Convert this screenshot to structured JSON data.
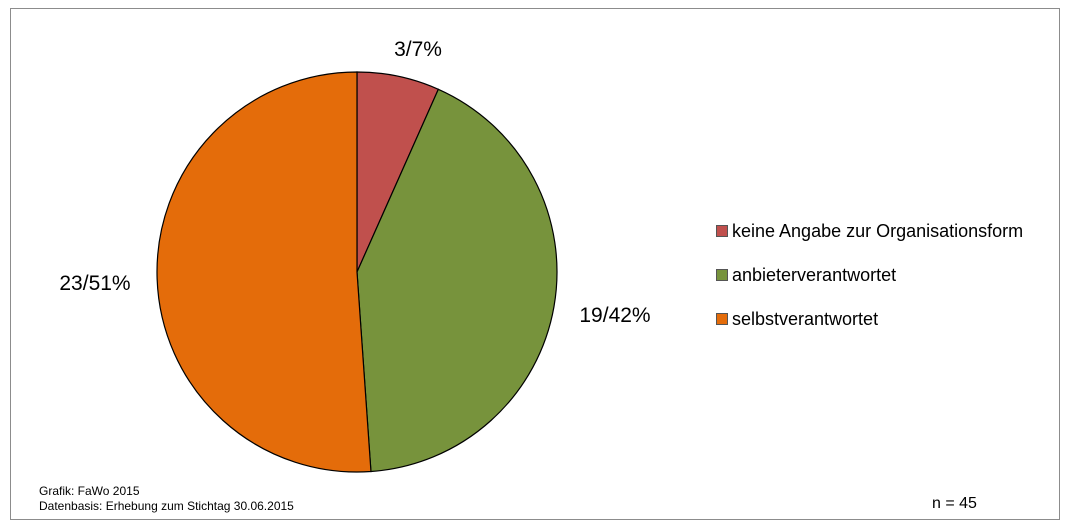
{
  "chart_data": {
    "type": "pie",
    "slices": [
      {
        "label": "keine Angabe zur Organisationsform",
        "count": 3,
        "percent": 7,
        "data_label": "3/7%",
        "color": "#c0504d"
      },
      {
        "label": "anbieterverantwortet",
        "count": 19,
        "percent": 42,
        "data_label": "19/42%",
        "color": "#77933c"
      },
      {
        "label": "selbstverantwortet",
        "count": 23,
        "percent": 51,
        "data_label": "23/51%",
        "color": "#e46c0a"
      }
    ],
    "total": 45,
    "legend_position": "right"
  },
  "footer": {
    "source_line1": "Grafik: FaWo 2015",
    "source_line2": "Datenbasis: Erhebung zum Stichtag 30.06.2015",
    "n_label": "n = 45"
  }
}
